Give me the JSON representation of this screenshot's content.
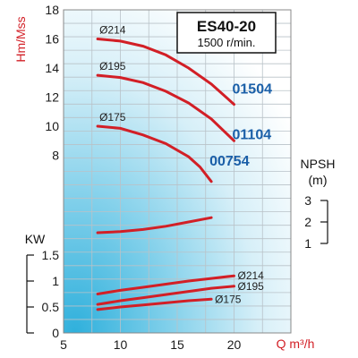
{
  "chart_data": {
    "type": "line",
    "title": "ES40-20",
    "subtitle": "1500 r/min.",
    "xlabel": "Q m³/h",
    "xlim": [
      5,
      25
    ],
    "x_ticks": [
      "5",
      "10",
      "15",
      "20"
    ],
    "head_panel": {
      "ylabel": "Hm/Mss",
      "y_ticks": [
        "8",
        "10",
        "12",
        "14",
        "16",
        "18"
      ],
      "series": [
        {
          "name": "Ø214",
          "model": "01504",
          "x": [
            8,
            10,
            12,
            14,
            16,
            18,
            20
          ],
          "y": [
            16.0,
            15.85,
            15.5,
            14.9,
            14.0,
            12.9,
            11.5
          ]
        },
        {
          "name": "Ø195",
          "model": "01104",
          "x": [
            8,
            10,
            12,
            14,
            16,
            18,
            20
          ],
          "y": [
            13.5,
            13.35,
            13.0,
            12.4,
            11.6,
            10.5,
            9.0
          ]
        },
        {
          "name": "Ø175",
          "model": "00754",
          "x": [
            8,
            10,
            12,
            14,
            16,
            17,
            18
          ],
          "y": [
            10.0,
            9.85,
            9.4,
            8.8,
            7.9,
            7.2,
            6.2
          ]
        }
      ]
    },
    "npsh_panel": {
      "ylabel": "NPSH",
      "unit": "(m)",
      "y_ticks": [
        "1",
        "2",
        "3"
      ],
      "series": [
        {
          "x": [
            8,
            10,
            12,
            14,
            16,
            18
          ],
          "y": [
            1.5,
            1.55,
            1.65,
            1.8,
            2.0,
            2.2
          ]
        }
      ]
    },
    "power_panel": {
      "ylabel": "KW",
      "y_ticks": [
        "0",
        "0.5",
        "1",
        "1.5"
      ],
      "series": [
        {
          "name": "Ø214",
          "x": [
            8,
            10,
            12,
            14,
            16,
            18,
            20
          ],
          "y": [
            0.75,
            0.82,
            0.88,
            0.94,
            1.0,
            1.05,
            1.1
          ]
        },
        {
          "name": "Ø195",
          "x": [
            8,
            10,
            12,
            14,
            16,
            18,
            20
          ],
          "y": [
            0.55,
            0.62,
            0.68,
            0.74,
            0.8,
            0.86,
            0.9
          ]
        },
        {
          "name": "Ø175",
          "x": [
            8,
            10,
            12,
            14,
            16,
            18
          ],
          "y": [
            0.45,
            0.5,
            0.54,
            0.58,
            0.62,
            0.65
          ]
        }
      ]
    },
    "grid": true
  },
  "colors": {
    "curve": "#d21f26",
    "model_label": "#1a5fa8",
    "axis_text_red": "#d21f26",
    "gradient_light": "#ffffff",
    "gradient_dark": "#39b6e0"
  }
}
